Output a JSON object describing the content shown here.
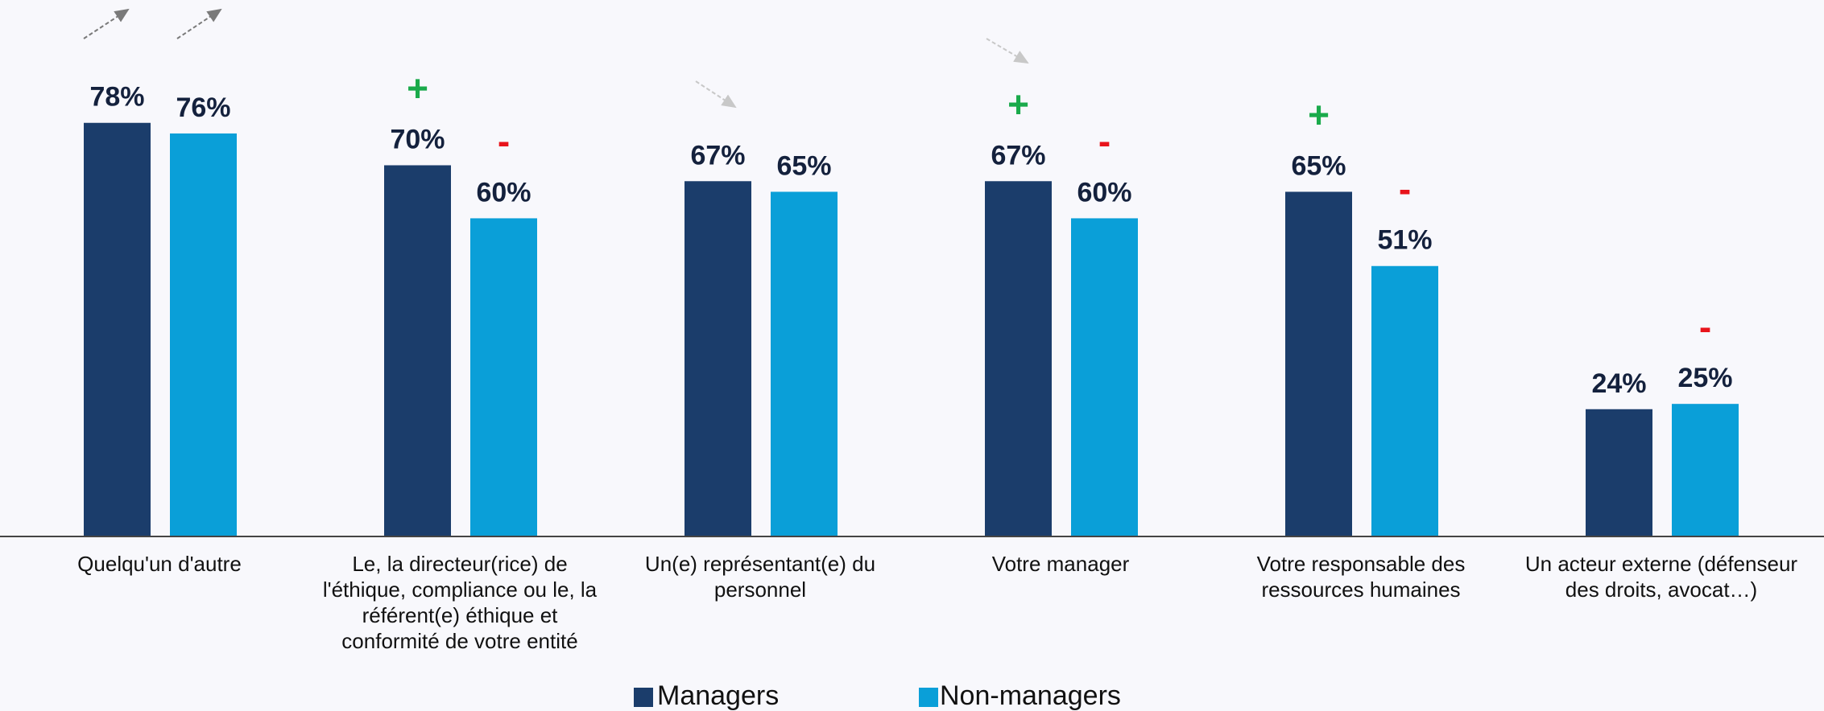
{
  "chart_data": {
    "type": "bar",
    "categories": [
      [
        "Quelqu'un d'autre"
      ],
      [
        "Le, la directeur(rice) de",
        "l'éthique, compliance ou le, la",
        "référent(e) éthique et",
        "conformité de votre entité"
      ],
      [
        "Un(e) représentant(e) du",
        "personnel"
      ],
      [
        "Votre manager"
      ],
      [
        "Votre responsable des",
        "ressources humaines"
      ],
      [
        "Un acteur externe (défenseur",
        "des droits, avocat…)"
      ]
    ],
    "series": [
      {
        "name": "Managers",
        "color": "#1b3d6b",
        "values": [
          78,
          70,
          67,
          67,
          65,
          24
        ],
        "value_labels": [
          "78%",
          "70%",
          "67%",
          "67%",
          "65%",
          "24%"
        ],
        "signs": [
          null,
          "+",
          null,
          "+",
          "+",
          null
        ],
        "sign_color": "#1aaa4b"
      },
      {
        "name": "Non-managers",
        "color": "#0a9fd8",
        "values": [
          76,
          60,
          65,
          60,
          51,
          25
        ],
        "value_labels": [
          "76%",
          "60%",
          "65%",
          "60%",
          "51%",
          "25%"
        ],
        "signs": [
          null,
          "-",
          null,
          "-",
          "-",
          "-"
        ],
        "sign_color": "#e8141b"
      }
    ],
    "legend": "bottom"
  }
}
